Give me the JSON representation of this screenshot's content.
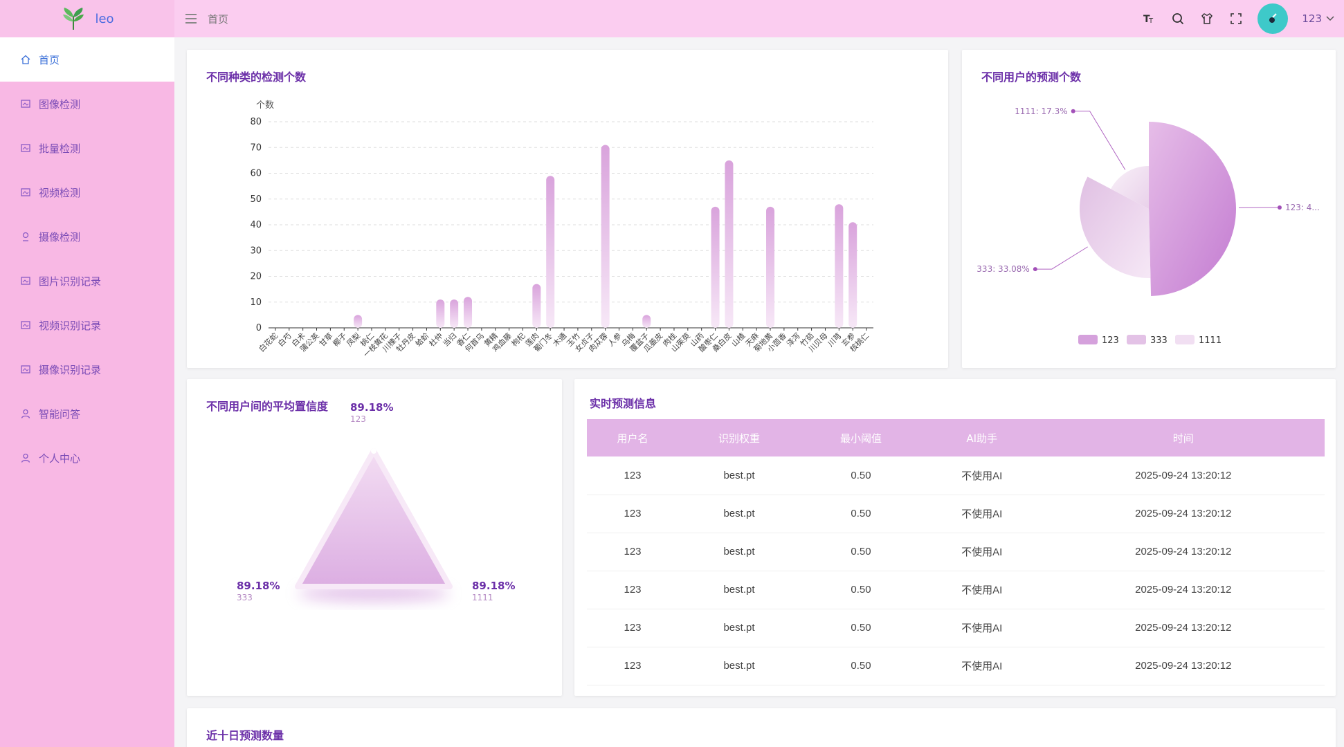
{
  "app": {
    "logo_text": "leo"
  },
  "header": {
    "breadcrumb": "首页",
    "user": "123"
  },
  "sidebar": {
    "items": [
      {
        "label": "首页",
        "icon": "home-icon",
        "active": true
      },
      {
        "label": "图像检测",
        "icon": "image-icon"
      },
      {
        "label": "批量检测",
        "icon": "images-icon"
      },
      {
        "label": "视频检测",
        "icon": "video-icon"
      },
      {
        "label": "摄像检测",
        "icon": "camera-icon"
      },
      {
        "label": "图片识别记录",
        "icon": "record-icon"
      },
      {
        "label": "视频识别记录",
        "icon": "record-icon"
      },
      {
        "label": "摄像识别记录",
        "icon": "record-icon"
      },
      {
        "label": "智能问答",
        "icon": "user-icon"
      },
      {
        "label": "个人中心",
        "icon": "user-icon"
      }
    ]
  },
  "cards": {
    "bar_title": "不同种类的检测个数",
    "pie_title": "不同用户的预测个数",
    "radar_title": "不同用户间的平均置信度",
    "table_title": "实时预测信息",
    "bottom_title": "近十日预测数量"
  },
  "chart_data": [
    {
      "type": "bar",
      "title": "不同种类的检测个数",
      "ylabel": "个数",
      "ylim": [
        0,
        80
      ],
      "yticks": [
        0,
        10,
        20,
        30,
        40,
        50,
        60,
        70,
        80
      ],
      "categories": [
        "白花蛇",
        "白芍",
        "白术",
        "蒲公英",
        "甘草",
        "椰子",
        "凤梨",
        "桃仁",
        "一枝黄花",
        "川楝子",
        "牡丹皮",
        "蛤蚧",
        "杜仲",
        "当归",
        "香仁",
        "何首乌",
        "黄精",
        "鸡血藤",
        "枸杞",
        "莲肉",
        "葡门冬",
        "木通",
        "玉竹",
        "女贞子",
        "肉苁蓉",
        "人参",
        "乌梅",
        "覆盆子",
        "瓜蒌皮",
        "肉桂",
        "山茱萸",
        "山药",
        "酸枣仁",
        "桑白皮",
        "山楂",
        "天麻",
        "菊地黄",
        "小茴香",
        "泽泻",
        "竹茹",
        "川贝母",
        "川芎",
        "玄参",
        "核桃仁"
      ],
      "values": [
        0,
        0,
        0,
        0,
        0,
        0,
        5,
        0,
        0,
        0,
        0,
        0,
        11,
        11,
        12,
        0,
        0,
        0,
        0,
        17,
        59,
        0,
        0,
        0,
        71,
        0,
        0,
        5,
        0,
        0,
        0,
        0,
        47,
        65,
        0,
        0,
        47,
        0,
        0,
        0,
        0,
        48,
        41,
        0
      ]
    },
    {
      "type": "pie",
      "title": "不同用户的预测个数",
      "slices": [
        {
          "name": "123",
          "label": "123: 4...",
          "value": 49.6
        },
        {
          "name": "333",
          "label": "333: 33.08%",
          "value": 33.08
        },
        {
          "name": "1111",
          "label": "1111: 17.3%",
          "value": 17.3
        }
      ],
      "legend": [
        "123",
        "333",
        "1111"
      ]
    },
    {
      "type": "radar",
      "title": "不同用户间的平均置信度",
      "points": [
        {
          "user": "123",
          "value_label": "89.18%"
        },
        {
          "user": "333",
          "value_label": "89.18%"
        },
        {
          "user": "1111",
          "value_label": "89.18%"
        }
      ]
    }
  ],
  "table": {
    "columns": [
      "用户名",
      "识别权重",
      "最小阈值",
      "AI助手",
      "时间"
    ],
    "rows": [
      [
        "123",
        "best.pt",
        "0.50",
        "不使用AI",
        "2025-09-24 13:20:12"
      ],
      [
        "123",
        "best.pt",
        "0.50",
        "不使用AI",
        "2025-09-24 13:20:12"
      ],
      [
        "123",
        "best.pt",
        "0.50",
        "不使用AI",
        "2025-09-24 13:20:12"
      ],
      [
        "123",
        "best.pt",
        "0.50",
        "不使用AI",
        "2025-09-24 13:20:12"
      ],
      [
        "123",
        "best.pt",
        "0.50",
        "不使用AI",
        "2025-09-24 13:20:12"
      ],
      [
        "123",
        "best.pt",
        "0.50",
        "不使用AI",
        "2025-09-24 13:20:12"
      ]
    ]
  },
  "colors": {
    "accent": "#c879d6",
    "sidebar": "#f8b8e4",
    "header": "#fbcdf0",
    "title": "#6b2fa8"
  }
}
